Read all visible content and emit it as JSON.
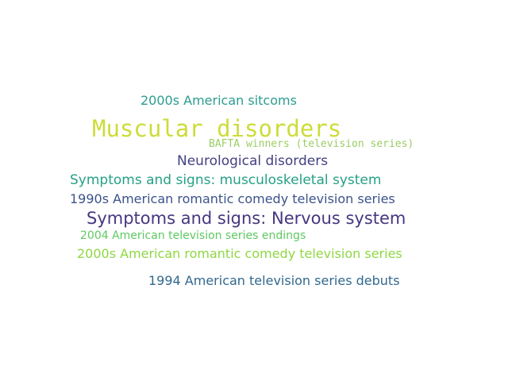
{
  "word_cloud": {
    "words": [
      {
        "text": "2000s American sitcoms",
        "color": "#2a9d8f",
        "weight": 3
      },
      {
        "text": "Muscular disorders",
        "color": "#cddc39",
        "weight": 6
      },
      {
        "text": "BAFTA winners (television series)",
        "color": "#9ccc65",
        "weight": 2
      },
      {
        "text": "Neurological disorders",
        "color": "#433f82",
        "weight": 3
      },
      {
        "text": "Symptoms and signs: musculoskeletal system",
        "color": "#26a186",
        "weight": 3
      },
      {
        "text": "1990s American romantic comedy television series",
        "color": "#3b528b",
        "weight": 3
      },
      {
        "text": "Symptoms and signs: Nervous system",
        "color": "#46377f",
        "weight": 4
      },
      {
        "text": "2004 American television series endings",
        "color": "#5ec962",
        "weight": 2
      },
      {
        "text": "2000s American romantic comedy television series",
        "color": "#8fd744",
        "weight": 3
      },
      {
        "text": "1994 American television series debuts",
        "color": "#31688e",
        "weight": 3
      }
    ]
  }
}
